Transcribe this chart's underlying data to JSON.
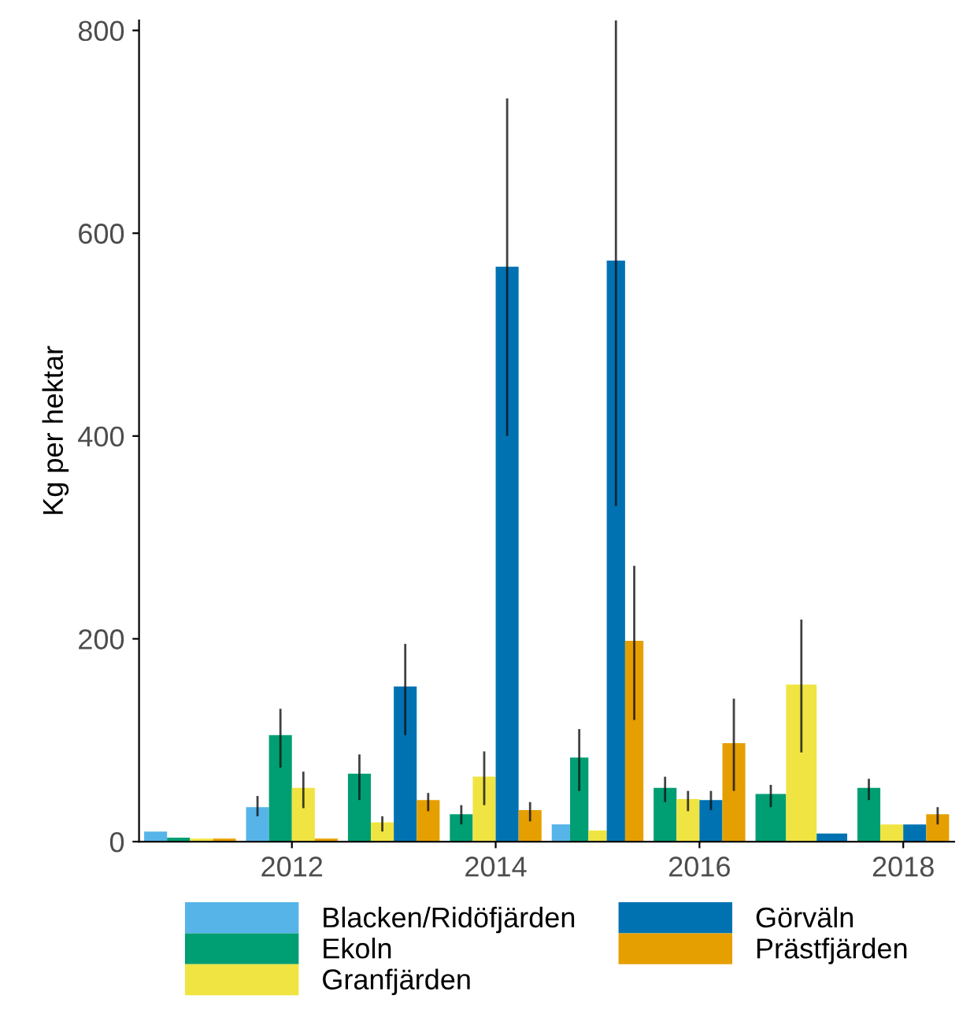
{
  "chart_data": {
    "type": "bar",
    "ylabel": "Kg per hektar",
    "x": [
      2011,
      2012,
      2013,
      2014,
      2015,
      2016,
      2017,
      2018
    ],
    "xlim": [
      2010.5,
      2018.5
    ],
    "xticks": [
      2012,
      2014,
      2016,
      2018
    ],
    "ylim": [
      0,
      810
    ],
    "yticks": [
      0,
      200,
      400,
      600,
      800
    ],
    "grid": false,
    "legend": "bottom",
    "series": [
      {
        "name": "Blacken/Ridöfjärden",
        "color": "#56b4e9",
        "values": [
          10,
          34,
          null,
          null,
          17,
          null,
          null,
          null
        ],
        "errors": [
          null,
          [
            25,
            45
          ],
          null,
          null,
          null,
          null,
          null,
          null
        ]
      },
      {
        "name": "Ekoln",
        "color": "#009e73",
        "values": [
          4,
          105,
          67,
          27,
          83,
          53,
          47,
          53
        ],
        "errors": [
          null,
          [
            73,
            131
          ],
          [
            41,
            86
          ],
          [
            17,
            36
          ],
          [
            50,
            111
          ],
          [
            39,
            64
          ],
          [
            34,
            56
          ],
          [
            41,
            62
          ]
        ]
      },
      {
        "name": "Granfjärden",
        "color": "#f0e442",
        "values": [
          3,
          53,
          19,
          64,
          11,
          42,
          155,
          17
        ],
        "errors": [
          null,
          [
            33,
            69
          ],
          [
            10,
            25
          ],
          [
            36,
            89
          ],
          null,
          [
            30,
            50
          ],
          [
            88,
            219
          ],
          null
        ]
      },
      {
        "name": "Görväln",
        "color": "#0072b2",
        "values": [
          null,
          null,
          153,
          567,
          573,
          41,
          8,
          17
        ],
        "errors": [
          null,
          null,
          [
            105,
            195
          ],
          [
            400,
            733
          ],
          [
            331,
            810
          ],
          [
            31,
            50
          ],
          null,
          null
        ]
      },
      {
        "name": "Prästfjärden",
        "color": "#e69f00",
        "values": [
          3,
          3,
          41,
          31,
          198,
          97,
          null,
          27
        ],
        "errors": [
          null,
          null,
          [
            30,
            48
          ],
          [
            20,
            39
          ],
          [
            120,
            272
          ],
          [
            50,
            141
          ],
          null,
          [
            17,
            34
          ]
        ]
      }
    ]
  }
}
